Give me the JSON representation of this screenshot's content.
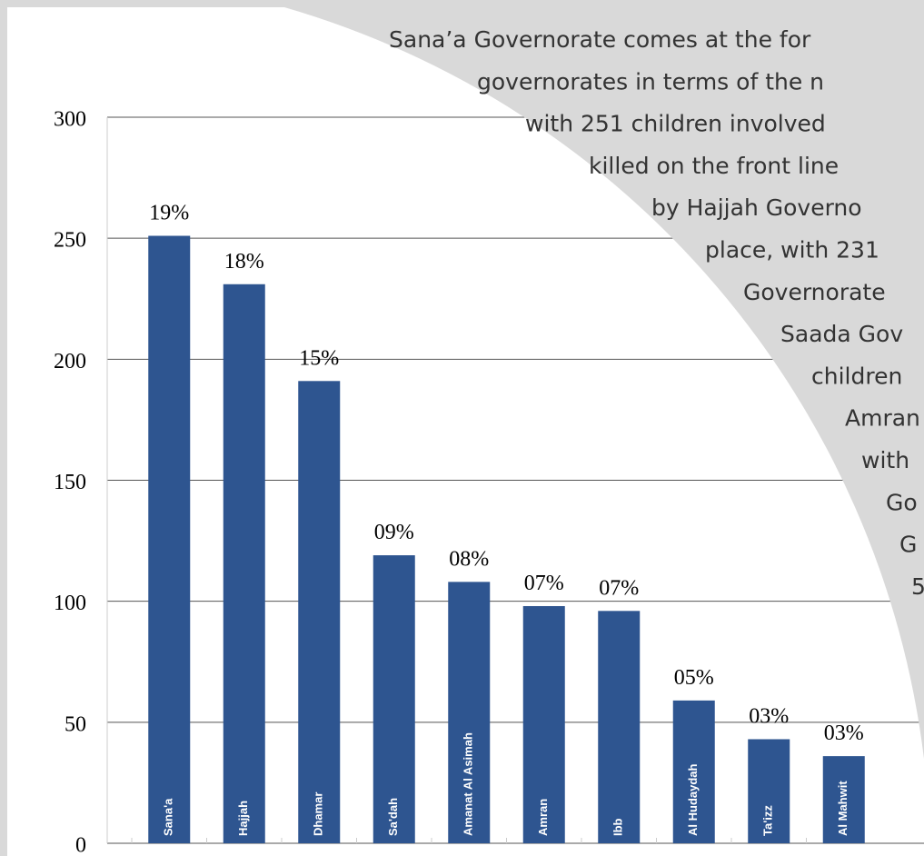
{
  "chart_data": {
    "type": "bar",
    "categories": [
      "Sana'a",
      "Hajjah",
      "Dhamar",
      "Sa'dah",
      "Amanat Al Asimah",
      "Amran",
      "Ibb",
      "Al Hudaydah",
      "Ta'izz",
      "Al Mahwit"
    ],
    "values": [
      251,
      231,
      191,
      119,
      108,
      98,
      96,
      59,
      43,
      36
    ],
    "percent_labels": [
      "19%",
      "18%",
      "15%",
      "09%",
      "08%",
      "07%",
      "07%",
      "05%",
      "03%",
      "03%"
    ],
    "color": "#2e5590",
    "ylim": [
      0,
      300
    ],
    "yticks": [
      0,
      50,
      100,
      150,
      200,
      250,
      300
    ],
    "grid": true,
    "annotation_lines": [
      "Sana’a Governorate comes at the for",
      "governorates in terms of the n",
      "with 251 children involved",
      "killed on the front line",
      "by Hajjah Governo",
      "place, with 231",
      "Governorate",
      "Saada Gov",
      "children",
      "Amran",
      "with",
      "Go",
      "G",
      "5"
    ]
  }
}
